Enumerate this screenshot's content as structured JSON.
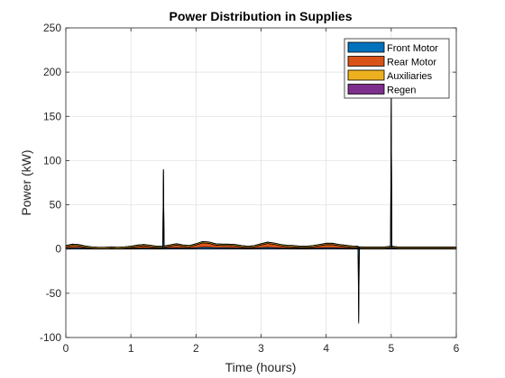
{
  "chart_data": {
    "type": "area",
    "title": "Power Distribution in Supplies",
    "xlabel": "Time (hours)",
    "ylabel": "Power (kW)",
    "xlim": [
      0,
      6
    ],
    "ylim": [
      -100,
      250
    ],
    "xticks": [
      0,
      1,
      2,
      3,
      4,
      5,
      6
    ],
    "yticks": [
      -100,
      -50,
      0,
      50,
      100,
      150,
      200,
      250
    ],
    "grid": true,
    "legend_position": "top-right",
    "x": [
      0,
      0.1,
      0.2,
      0.3,
      0.4,
      0.5,
      0.6,
      0.7,
      0.8,
      0.9,
      1.0,
      1.1,
      1.2,
      1.3,
      1.4,
      1.49,
      1.5,
      1.51,
      1.6,
      1.7,
      1.8,
      1.9,
      2.0,
      2.1,
      2.2,
      2.3,
      2.4,
      2.5,
      2.6,
      2.7,
      2.8,
      2.9,
      3.0,
      3.1,
      3.2,
      3.3,
      3.4,
      3.5,
      3.6,
      3.7,
      3.8,
      3.9,
      4.0,
      4.1,
      4.2,
      4.3,
      4.4,
      4.49,
      4.5,
      4.51,
      4.6,
      4.7,
      4.8,
      4.9,
      4.99,
      5.0,
      5.01,
      5.1,
      5.2,
      5.3,
      5.4,
      5.5,
      5.6,
      5.7,
      5.8,
      5.9,
      6.0
    ],
    "series": [
      {
        "name": "Front Motor",
        "color": "#0072BD",
        "values": [
          1.0,
          1.5,
          1.5,
          1.0,
          0.5,
          0.3,
          0.3,
          0.5,
          0.3,
          0.5,
          0.8,
          1.0,
          1.2,
          1.0,
          0.8,
          1.0,
          45,
          1.0,
          1.2,
          1.5,
          1.2,
          1.0,
          1.5,
          2.0,
          2.0,
          1.5,
          1.5,
          1.5,
          1.2,
          1.0,
          0.8,
          1.0,
          1.5,
          1.8,
          1.5,
          1.2,
          1.0,
          1.0,
          0.8,
          0.8,
          1.0,
          1.2,
          1.5,
          1.5,
          1.2,
          1.0,
          0.8,
          0.8,
          -42,
          0.5,
          0.5,
          0.5,
          0.5,
          0.5,
          0.8,
          90,
          0.8,
          0.5,
          0.5,
          0.5,
          0.5,
          0.5,
          0.5,
          0.5,
          0.5,
          0.5,
          0.5
        ]
      },
      {
        "name": "Rear Motor",
        "color": "#D95319",
        "values": [
          1.5,
          2.5,
          2.0,
          1.0,
          0.5,
          0.2,
          0.2,
          0.5,
          0.2,
          0.5,
          1.0,
          2.0,
          2.5,
          1.8,
          1.0,
          1.0,
          43,
          1.0,
          2.0,
          3.0,
          2.0,
          1.5,
          3.0,
          5.0,
          4.5,
          3.0,
          2.5,
          2.5,
          2.5,
          1.5,
          0.8,
          1.5,
          3.0,
          4.5,
          3.8,
          2.5,
          1.8,
          1.5,
          1.0,
          1.0,
          1.5,
          2.5,
          3.5,
          3.5,
          2.5,
          1.8,
          1.2,
          1.0,
          -40,
          0.5,
          0.3,
          0.3,
          0.3,
          0.3,
          1.0,
          80,
          1.0,
          0.3,
          0.3,
          0.3,
          0.3,
          0.3,
          0.3,
          0.3,
          0.3,
          0.3,
          0.3
        ]
      },
      {
        "name": "Auxiliaries",
        "color": "#EDB120",
        "values": [
          1.5,
          1.5,
          1.5,
          1.5,
          1.5,
          1.5,
          1.5,
          1.5,
          1.5,
          1.5,
          1.5,
          1.5,
          1.5,
          1.5,
          1.5,
          1.5,
          2.0,
          1.5,
          1.5,
          1.5,
          1.5,
          1.5,
          1.5,
          1.5,
          1.5,
          1.5,
          1.5,
          1.5,
          1.5,
          1.5,
          1.5,
          1.5,
          1.5,
          1.5,
          1.5,
          1.5,
          1.5,
          1.5,
          1.5,
          1.5,
          1.5,
          1.5,
          1.5,
          1.5,
          1.5,
          1.5,
          1.5,
          1.5,
          1.5,
          1.5,
          1.5,
          1.5,
          1.5,
          1.5,
          1.5,
          2.0,
          1.5,
          1.5,
          1.5,
          1.5,
          1.5,
          1.5,
          1.5,
          1.5,
          1.5,
          1.5,
          1.5
        ]
      },
      {
        "name": "Regen",
        "color": "#7E2F8E",
        "values": [
          0,
          0,
          0,
          0,
          0,
          0,
          0,
          0,
          0,
          0,
          0,
          0,
          0,
          0,
          0,
          0,
          0,
          0,
          0,
          0,
          0,
          0,
          0,
          0,
          0,
          0,
          0,
          0,
          0,
          0,
          0,
          0,
          0,
          0,
          0,
          0,
          0,
          0,
          0,
          0,
          0,
          0,
          0,
          0,
          0,
          0,
          0,
          0,
          -2,
          0,
          0,
          0,
          0,
          0,
          0,
          0,
          0,
          0,
          0,
          0,
          0,
          0,
          0,
          0,
          0,
          0,
          0
        ]
      }
    ]
  },
  "colors": {
    "axis": "#262626",
    "grid": "#DFDFDF",
    "background": "#FFFFFF"
  }
}
